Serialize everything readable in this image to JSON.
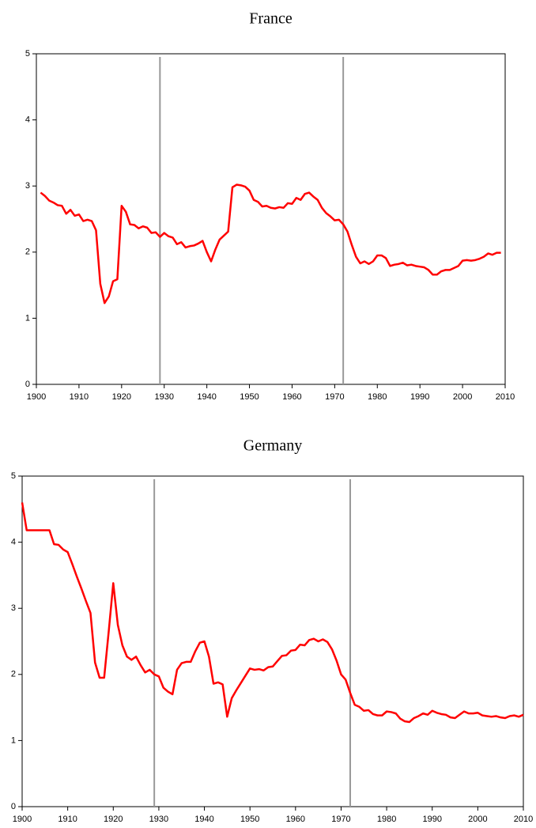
{
  "chart_data": [
    {
      "type": "line",
      "title": "France",
      "color": "#ff0000",
      "x": [
        1901,
        1902,
        1903,
        1904,
        1905,
        1906,
        1907,
        1908,
        1909,
        1910,
        1911,
        1912,
        1913,
        1914,
        1915,
        1916,
        1917,
        1918,
        1919,
        1920,
        1921,
        1922,
        1923,
        1924,
        1925,
        1926,
        1927,
        1928,
        1929,
        1930,
        1931,
        1932,
        1933,
        1934,
        1935,
        1936,
        1937,
        1938,
        1939,
        1940,
        1941,
        1942,
        1943,
        1944,
        1945,
        1946,
        1947,
        1948,
        1949,
        1950,
        1951,
        1952,
        1953,
        1954,
        1955,
        1956,
        1957,
        1958,
        1959,
        1960,
        1961,
        1962,
        1963,
        1964,
        1965,
        1966,
        1967,
        1968,
        1969,
        1970,
        1971,
        1972,
        1973,
        1974,
        1975,
        1976,
        1977,
        1978,
        1979,
        1980,
        1981,
        1982,
        1983,
        1984,
        1985,
        1986,
        1987,
        1988,
        1989,
        1990,
        1991,
        1992,
        1993,
        1994,
        1995,
        1996,
        1997,
        1998,
        1999,
        2000,
        2001,
        2002,
        2003,
        2004,
        2005,
        2006,
        2007,
        2008,
        2009
      ],
      "values": [
        2.9,
        2.85,
        2.78,
        2.75,
        2.71,
        2.7,
        2.58,
        2.64,
        2.55,
        2.57,
        2.47,
        2.49,
        2.47,
        2.33,
        1.52,
        1.23,
        1.33,
        1.56,
        1.59,
        2.7,
        2.61,
        2.42,
        2.41,
        2.36,
        2.39,
        2.37,
        2.29,
        2.3,
        2.23,
        2.29,
        2.24,
        2.22,
        2.12,
        2.15,
        2.07,
        2.09,
        2.1,
        2.13,
        2.17,
        2.0,
        1.86,
        2.04,
        2.19,
        2.25,
        2.31,
        2.98,
        3.02,
        3.01,
        2.99,
        2.93,
        2.79,
        2.76,
        2.69,
        2.7,
        2.67,
        2.66,
        2.68,
        2.67,
        2.74,
        2.73,
        2.82,
        2.79,
        2.88,
        2.9,
        2.84,
        2.79,
        2.67,
        2.59,
        2.54,
        2.48,
        2.49,
        2.42,
        2.31,
        2.11,
        1.93,
        1.83,
        1.86,
        1.82,
        1.86,
        1.95,
        1.95,
        1.91,
        1.79,
        1.81,
        1.82,
        1.84,
        1.8,
        1.81,
        1.79,
        1.78,
        1.77,
        1.73,
        1.66,
        1.66,
        1.71,
        1.73,
        1.73,
        1.76,
        1.79,
        1.87,
        1.88,
        1.87,
        1.88,
        1.9,
        1.93,
        1.98,
        1.96,
        1.99,
        1.99
      ],
      "vlines": [
        1929,
        1972
      ],
      "vline_color": "#999999",
      "xlim": [
        1900,
        2010
      ],
      "xticks": [
        1900,
        1910,
        1920,
        1930,
        1940,
        1950,
        1960,
        1970,
        1980,
        1990,
        2000,
        2010
      ],
      "ylim": [
        0,
        5
      ],
      "yticks": [
        0,
        1,
        2,
        3,
        4,
        5
      ]
    },
    {
      "type": "line",
      "title": "Germany",
      "color": "#ff0000",
      "x": [
        1900,
        1901,
        1902,
        1903,
        1904,
        1905,
        1906,
        1907,
        1908,
        1909,
        1910,
        1911,
        1912,
        1913,
        1914,
        1915,
        1916,
        1917,
        1918,
        1919,
        1920,
        1921,
        1922,
        1923,
        1924,
        1925,
        1926,
        1927,
        1928,
        1929,
        1930,
        1931,
        1932,
        1933,
        1934,
        1935,
        1936,
        1937,
        1938,
        1939,
        1940,
        1941,
        1942,
        1943,
        1944,
        1945,
        1946,
        1947,
        1948,
        1949,
        1950,
        1951,
        1952,
        1953,
        1954,
        1955,
        1956,
        1957,
        1958,
        1959,
        1960,
        1961,
        1962,
        1963,
        1964,
        1965,
        1966,
        1967,
        1968,
        1969,
        1970,
        1971,
        1972,
        1973,
        1974,
        1975,
        1976,
        1977,
        1978,
        1979,
        1980,
        1981,
        1982,
        1983,
        1984,
        1985,
        1986,
        1987,
        1988,
        1989,
        1990,
        1991,
        1992,
        1993,
        1994,
        1995,
        1996,
        1997,
        1998,
        1999,
        2000,
        2001,
        2002,
        2003,
        2004,
        2005,
        2006,
        2007,
        2008,
        2009,
        2010
      ],
      "values": [
        4.6,
        4.18,
        4.18,
        4.18,
        4.18,
        4.18,
        4.18,
        3.97,
        3.96,
        3.89,
        3.85,
        3.67,
        3.48,
        3.3,
        3.11,
        2.93,
        2.18,
        1.95,
        1.95,
        2.65,
        3.38,
        2.75,
        2.44,
        2.27,
        2.22,
        2.27,
        2.14,
        2.03,
        2.07,
        2.0,
        1.97,
        1.8,
        1.74,
        1.7,
        2.07,
        2.17,
        2.19,
        2.19,
        2.35,
        2.48,
        2.5,
        2.27,
        1.86,
        1.88,
        1.85,
        1.36,
        1.64,
        1.76,
        1.87,
        1.98,
        2.09,
        2.07,
        2.08,
        2.06,
        2.11,
        2.12,
        2.2,
        2.28,
        2.29,
        2.36,
        2.37,
        2.45,
        2.44,
        2.52,
        2.54,
        2.5,
        2.53,
        2.49,
        2.38,
        2.21,
        2.0,
        1.92,
        1.72,
        1.54,
        1.51,
        1.45,
        1.46,
        1.4,
        1.38,
        1.38,
        1.44,
        1.43,
        1.41,
        1.33,
        1.29,
        1.28,
        1.34,
        1.37,
        1.41,
        1.39,
        1.45,
        1.42,
        1.4,
        1.39,
        1.35,
        1.34,
        1.39,
        1.44,
        1.41,
        1.41,
        1.42,
        1.38,
        1.37,
        1.36,
        1.37,
        1.35,
        1.34,
        1.37,
        1.38,
        1.36,
        1.39
      ],
      "vlines": [
        1929,
        1972
      ],
      "vline_color": "#999999",
      "xlim": [
        1900,
        2010
      ],
      "xticks": [
        1900,
        1910,
        1920,
        1930,
        1940,
        1950,
        1960,
        1970,
        1980,
        1990,
        2000,
        2010
      ],
      "ylim": [
        0,
        5
      ],
      "yticks": [
        0,
        1,
        2,
        3,
        4,
        5
      ]
    }
  ]
}
